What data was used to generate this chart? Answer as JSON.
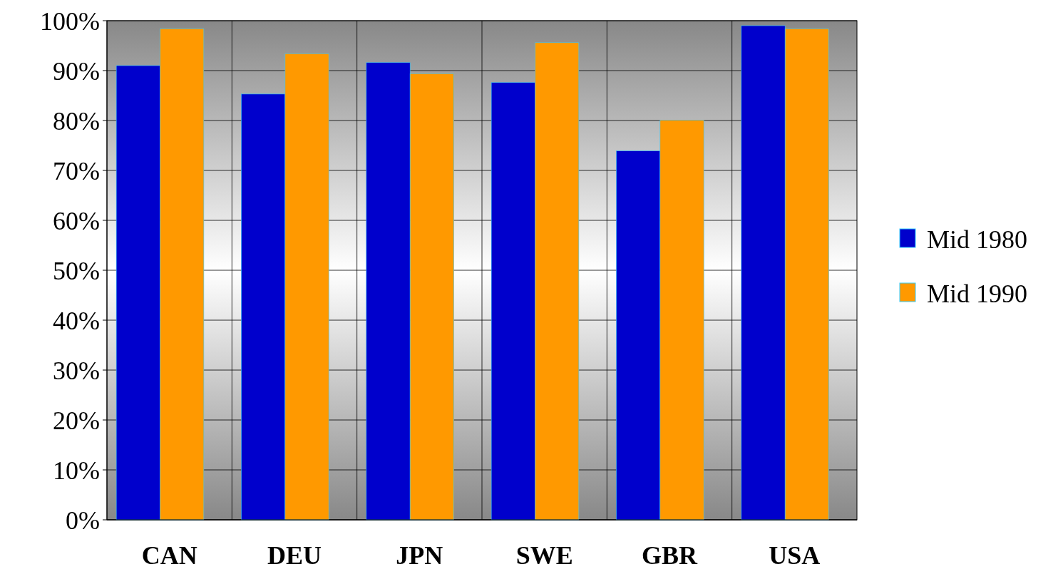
{
  "chart_data": {
    "type": "bar",
    "categories": [
      "CAN",
      "DEU",
      "JPN",
      "SWE",
      "GBR",
      "USA"
    ],
    "series": [
      {
        "name": "Mid 1980",
        "color": "#0000cc",
        "values": [
          91,
          85.3,
          91.6,
          87.6,
          73.9,
          99
        ]
      },
      {
        "name": "Mid 1990",
        "color": "#ff9900",
        "values": [
          98.4,
          93.4,
          89.4,
          95.6,
          80.1,
          98.4
        ]
      }
    ],
    "ylim": [
      0,
      100
    ],
    "yticks": [
      {
        "value": 0,
        "label": "0%"
      },
      {
        "value": 10,
        "label": "10%"
      },
      {
        "value": 20,
        "label": "20%"
      },
      {
        "value": 30,
        "label": "30%"
      },
      {
        "value": 40,
        "label": "40%"
      },
      {
        "value": 50,
        "label": "50%"
      },
      {
        "value": 60,
        "label": "60%"
      },
      {
        "value": 70,
        "label": "70%"
      },
      {
        "value": 80,
        "label": "80%"
      },
      {
        "value": 90,
        "label": "90%"
      },
      {
        "value": 100,
        "label": "100%"
      }
    ],
    "grid": true,
    "legend": "right"
  }
}
